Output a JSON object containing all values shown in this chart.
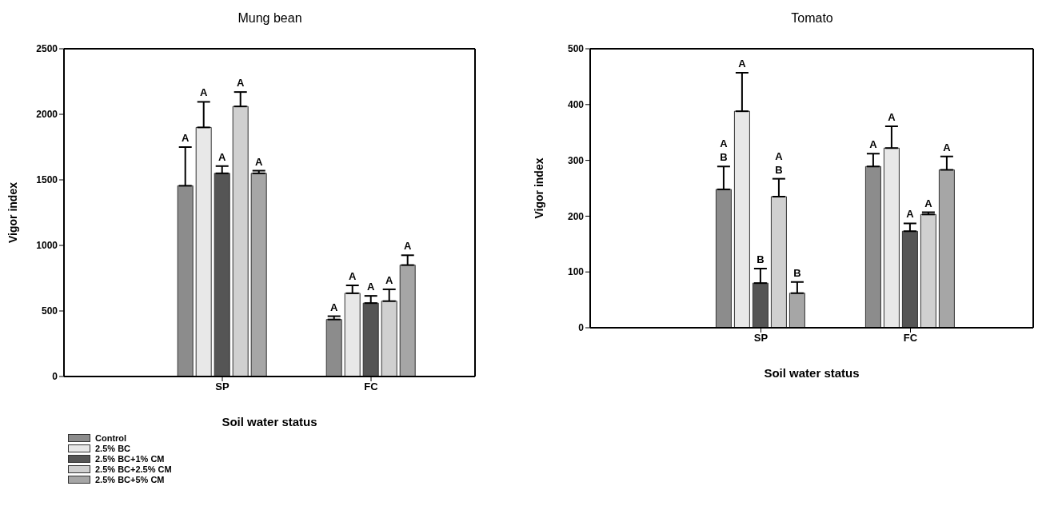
{
  "chart_data": [
    {
      "type": "bar",
      "title": "Mung bean",
      "xlabel": "Soil water status",
      "ylabel": "Vigor index",
      "categories": [
        "SP",
        "FC"
      ],
      "ylim": [
        0,
        2500
      ],
      "yticks": [
        0,
        500,
        1000,
        1500,
        2000,
        2500
      ],
      "grid": false,
      "legend": "bottom left",
      "series": [
        {
          "name": "Control",
          "color": "#8c8c8c",
          "values": [
            1455,
            435
          ],
          "errors": [
            295,
            25
          ]
        },
        {
          "name": "2.5% BC",
          "color": "#e8e8e8",
          "values": [
            1900,
            635
          ],
          "errors": [
            195,
            60
          ]
        },
        {
          "name": "2.5% BC+1% CM",
          "color": "#555555",
          "values": [
            1550,
            560
          ],
          "errors": [
            55,
            55
          ]
        },
        {
          "name": "2.5% BC+2.5% CM",
          "color": "#d0d0d0",
          "values": [
            2060,
            575
          ],
          "errors": [
            110,
            90
          ]
        },
        {
          "name": "2.5% BC+5% CM",
          "color": "#a6a6a6",
          "values": [
            1550,
            850
          ],
          "errors": [
            20,
            75
          ]
        }
      ],
      "annotations": [
        "A",
        "A",
        "A",
        "A",
        "A",
        "A",
        "A",
        "A",
        "A",
        "A"
      ]
    },
    {
      "type": "bar",
      "title": "Tomato",
      "xlabel": "Soil water status",
      "ylabel": "Vigor index",
      "categories": [
        "SP",
        "FC"
      ],
      "ylim": [
        0,
        500
      ],
      "yticks": [
        0,
        100,
        200,
        300,
        400,
        500
      ],
      "grid": false,
      "series": [
        {
          "color": "#8c8c8c",
          "values": [
            248,
            289
          ],
          "errors": [
            41,
            23
          ]
        },
        {
          "color": "#e8e8e8",
          "values": [
            388,
            322
          ],
          "errors": [
            69,
            39
          ]
        },
        {
          "color": "#555555",
          "values": [
            80,
            173
          ],
          "errors": [
            26,
            14
          ]
        },
        {
          "color": "#d0d0d0",
          "values": [
            235,
            203
          ],
          "errors": [
            32,
            4
          ]
        },
        {
          "color": "#a6a6a6",
          "values": [
            62,
            283
          ],
          "errors": [
            20,
            24
          ]
        }
      ],
      "annotations": [
        "A\nB",
        "A",
        "B",
        "A\nB",
        "B",
        "A",
        "A",
        "A",
        "A",
        "A"
      ]
    }
  ]
}
